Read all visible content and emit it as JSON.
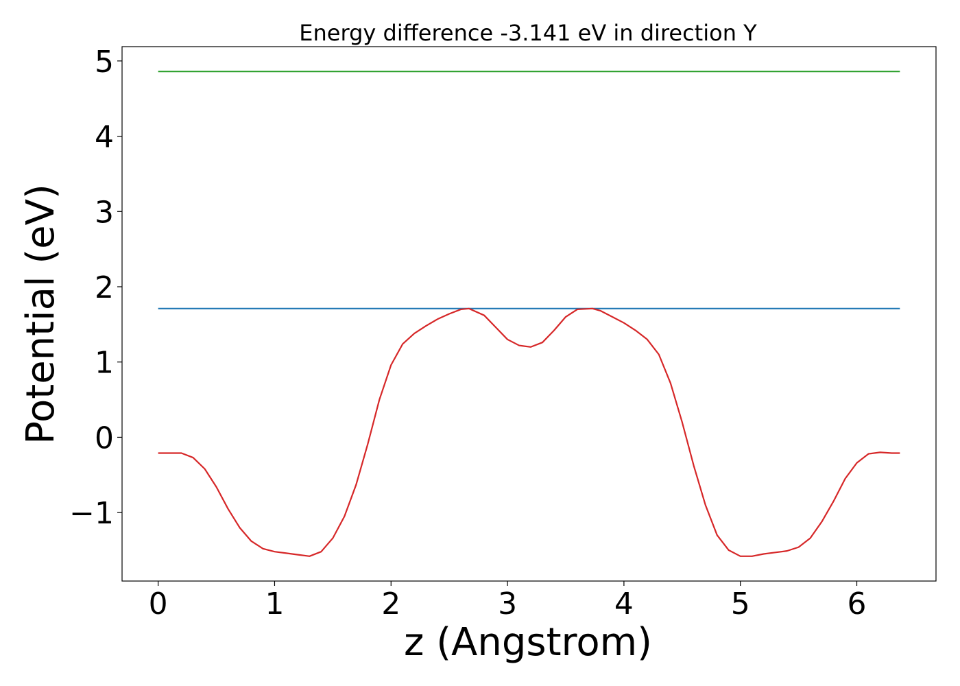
{
  "chart_data": {
    "type": "line",
    "title": "Energy difference -3.141 eV in direction Y",
    "xlabel": "z (Angstrom)",
    "ylabel": "Potential (eV)",
    "xlim": [
      -0.31,
      6.68
    ],
    "ylim": [
      -1.91,
      5.19
    ],
    "xticks": [
      0,
      1,
      2,
      3,
      4,
      5,
      6
    ],
    "xtick_labels": [
      "0",
      "1",
      "2",
      "3",
      "4",
      "5",
      "6"
    ],
    "yticks": [
      -1,
      0,
      1,
      2,
      3,
      4,
      5
    ],
    "ytick_labels": [
      "−1",
      "0",
      "1",
      "2",
      "3",
      "4",
      "5"
    ],
    "grid": false,
    "series": [
      {
        "color": "#2ca02c",
        "x": [
          0,
          6.37
        ],
        "y": [
          4.86,
          4.86
        ]
      },
      {
        "color": "#1f77b4",
        "x": [
          0,
          6.37
        ],
        "y": [
          1.71,
          1.71
        ]
      },
      {
        "color": "#d62728",
        "x": [
          0,
          0.1,
          0.2,
          0.3,
          0.4,
          0.5,
          0.6,
          0.7,
          0.8,
          0.9,
          1.0,
          1.1,
          1.2,
          1.3,
          1.4,
          1.5,
          1.6,
          1.7,
          1.8,
          1.9,
          2.0,
          2.1,
          2.2,
          2.3,
          2.4,
          2.5,
          2.6,
          2.67,
          2.8,
          2.9,
          3.0,
          3.1,
          3.2,
          3.3,
          3.4,
          3.5,
          3.6,
          3.73,
          3.8,
          3.9,
          4.0,
          4.1,
          4.2,
          4.3,
          4.4,
          4.5,
          4.6,
          4.7,
          4.8,
          4.9,
          5.0,
          5.1,
          5.2,
          5.3,
          5.4,
          5.5,
          5.6,
          5.7,
          5.8,
          5.9,
          6.0,
          6.1,
          6.2,
          6.3,
          6.37
        ],
        "y": [
          -0.21,
          -0.21,
          -0.21,
          -0.27,
          -0.42,
          -0.66,
          -0.95,
          -1.2,
          -1.38,
          -1.48,
          -1.52,
          -1.54,
          -1.56,
          -1.58,
          -1.52,
          -1.34,
          -1.05,
          -0.63,
          -0.09,
          0.5,
          0.96,
          1.24,
          1.38,
          1.48,
          1.57,
          1.64,
          1.7,
          1.71,
          1.62,
          1.46,
          1.3,
          1.22,
          1.2,
          1.26,
          1.42,
          1.6,
          1.7,
          1.71,
          1.68,
          1.6,
          1.52,
          1.42,
          1.3,
          1.1,
          0.72,
          0.2,
          -0.38,
          -0.9,
          -1.3,
          -1.5,
          -1.58,
          -1.58,
          -1.55,
          -1.53,
          -1.51,
          -1.46,
          -1.34,
          -1.12,
          -0.85,
          -0.55,
          -0.34,
          -0.22,
          -0.2,
          -0.21,
          -0.21
        ]
      }
    ]
  }
}
